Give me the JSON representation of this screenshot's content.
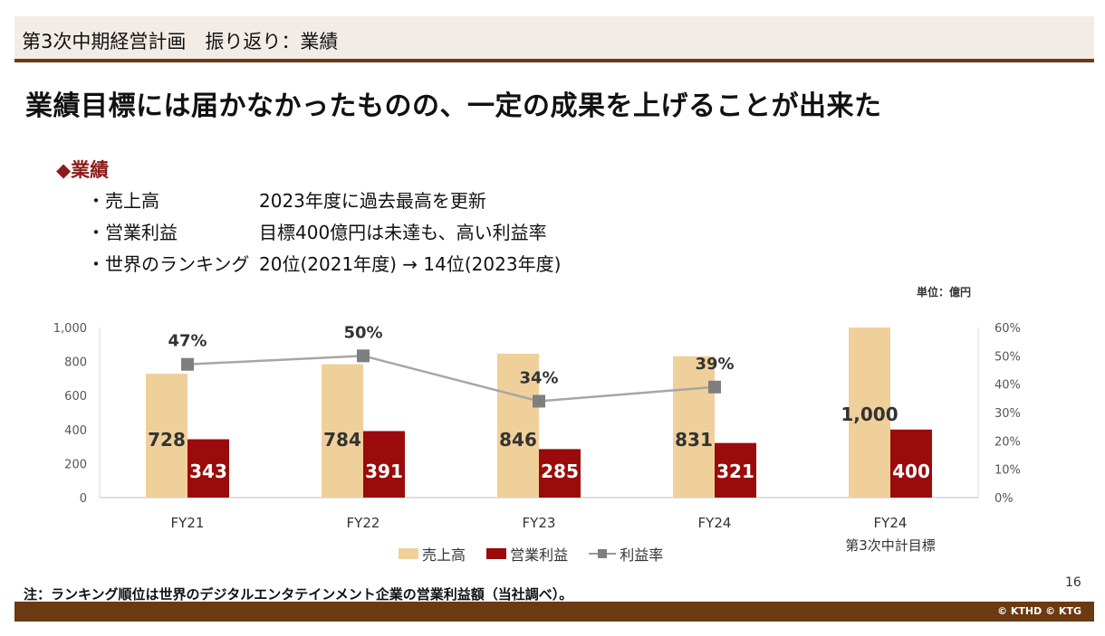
{
  "header": {
    "title": "第3次中期経営計画　振り返り：業績"
  },
  "headline": "業績目標には届かなかったものの、一定の成果を上げることが出来た",
  "section_heading": "◆業績",
  "summary": [
    {
      "label": "・売上高",
      "text": "2023年度に過去最高を更新"
    },
    {
      "label": "・営業利益",
      "text": "目標400億円は未達も、高い利益率"
    },
    {
      "label": "・世界のランキング",
      "text": "20位(2021年度) → 14位(2023年度)"
    }
  ],
  "unit_note": "単位：億円",
  "page_number": "16",
  "footnote": "注：ランキング順位は世界のデジタルエンタテインメント企業の営業利益額（当社調べ）。",
  "copyright": "© KTHD © KTG",
  "colors": {
    "sales": "#f0d09a",
    "operating_profit": "#9b0b0b",
    "margin": "#a6a6a6",
    "margin_marker": "#7f7f7f",
    "brown": "#6b3a12"
  },
  "chart_data": {
    "type": "bar",
    "categories": [
      "FY21",
      "FY22",
      "FY23",
      "FY24",
      "FY24"
    ],
    "category_sublabels": [
      "",
      "",
      "",
      "",
      "第3次中計目標"
    ],
    "series": [
      {
        "name": "売上高",
        "type": "bar",
        "values": [
          728,
          784,
          846,
          831,
          1000
        ],
        "labels": [
          "728",
          "784",
          "846",
          "831",
          "1,000"
        ]
      },
      {
        "name": "営業利益",
        "type": "bar",
        "values": [
          343,
          391,
          285,
          321,
          400
        ],
        "labels": [
          "343",
          "391",
          "285",
          "321",
          "400"
        ]
      },
      {
        "name": "利益率",
        "type": "line",
        "axis": "right",
        "values": [
          47,
          50,
          34,
          39,
          null
        ],
        "labels": [
          "47%",
          "50%",
          "34%",
          "39%",
          ""
        ]
      }
    ],
    "y_left": {
      "min": 0,
      "max": 1000,
      "ticks": [
        "0",
        "200",
        "400",
        "600",
        "800",
        "1,000"
      ]
    },
    "y_right": {
      "min": 0,
      "max": 60,
      "ticks": [
        "0%",
        "10%",
        "20%",
        "30%",
        "40%",
        "50%",
        "60%"
      ]
    },
    "grid": false,
    "legend_position": "bottom"
  }
}
